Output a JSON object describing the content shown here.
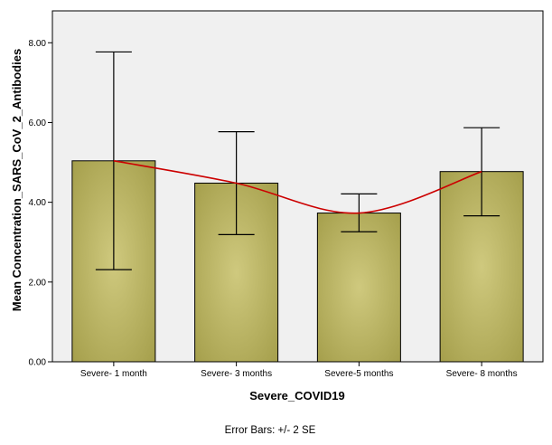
{
  "chart_data": {
    "type": "bar",
    "categories": [
      "Severe- 1 month",
      "Severe- 3 months",
      "Severe-5 months",
      "Severe- 8 months"
    ],
    "values": [
      5.04,
      4.48,
      3.73,
      4.77
    ],
    "error_low": [
      2.31,
      3.19,
      3.26,
      3.66
    ],
    "error_high": [
      7.77,
      5.77,
      4.21,
      5.87
    ],
    "ylim": [
      0,
      8.8
    ],
    "yticks": [
      "0.00",
      "2.00",
      "4.00",
      "6.00",
      "8.00"
    ],
    "ytick_values": [
      0,
      2,
      4,
      6,
      8
    ],
    "xlabel": "Severe_COVID19",
    "ylabel": "Mean Concentration_SARS_CoV_2_Antibodies",
    "footnote": "Error Bars: +/- 2 SE",
    "colors": {
      "bar_light": "#cfc97e",
      "bar_dark": "#a29c48",
      "plot_bg": "#f0f0f0",
      "trend_line": "#cc0000"
    }
  }
}
